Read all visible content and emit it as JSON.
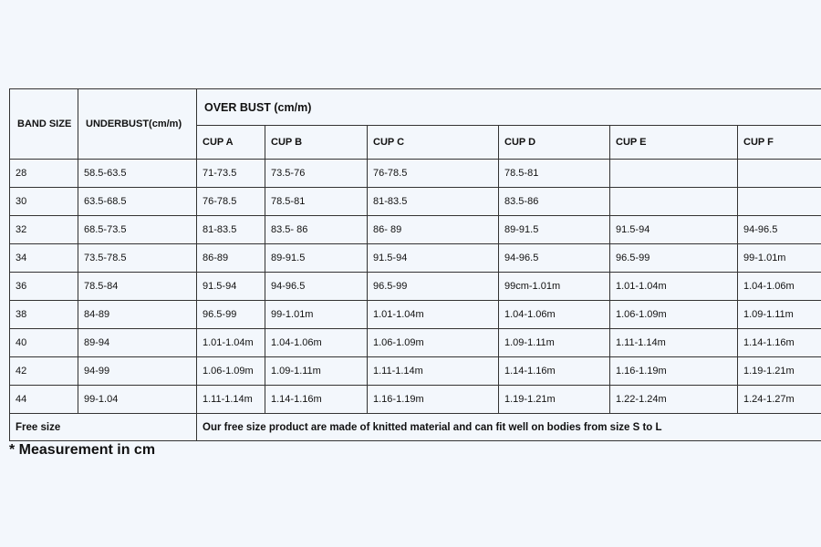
{
  "table": {
    "band_header": "BAND SIZE",
    "underbust_header": "UNDERBUST(cm/m)",
    "overbust_header": "OVER BUST (cm/m)",
    "cups": [
      "CUP A",
      "CUP B",
      "CUP C",
      "CUP D",
      "CUP E",
      "CUP F"
    ],
    "rows": [
      [
        "28",
        "58.5-63.5",
        "71-73.5",
        "73.5-76",
        "76-78.5",
        "78.5-81",
        "",
        ""
      ],
      [
        "30",
        "63.5-68.5",
        "76-78.5",
        "78.5-81",
        "81-83.5",
        "83.5-86",
        "",
        ""
      ],
      [
        "32",
        "68.5-73.5",
        "81-83.5",
        "83.5- 86",
        "86- 89",
        "89-91.5",
        "91.5-94",
        "94-96.5"
      ],
      [
        "34",
        "73.5-78.5",
        "86-89",
        "89-91.5",
        "91.5-94",
        "94-96.5",
        "96.5-99",
        "99-1.01m"
      ],
      [
        "36",
        "78.5-84",
        "91.5-94",
        "94-96.5",
        "96.5-99",
        "99cm-1.01m",
        "1.01-1.04m",
        "1.04-1.06m"
      ],
      [
        "38",
        "84-89",
        "96.5-99",
        "99-1.01m",
        "1.01-1.04m",
        "1.04-1.06m",
        "1.06-1.09m",
        "1.09-1.11m"
      ],
      [
        "40",
        "89-94",
        "1.01-1.04m",
        "1.04-1.06m",
        "1.06-1.09m",
        "1.09-1.11m",
        "1.11-1.14m",
        "1.14-1.16m"
      ],
      [
        "42",
        "94-99",
        "1.06-1.09m",
        "1.09-1.11m",
        "1.11-1.14m",
        "1.14-1.16m",
        "1.16-1.19m",
        "1.19-1.21m"
      ],
      [
        "44",
        "99-1.04",
        "1.11-1.14m",
        "1.14-1.16m",
        "1.16-1.19m",
        "1.19-1.21m",
        "1.22-1.24m",
        "1.24-1.27m"
      ]
    ],
    "free_size_label": "Free size",
    "free_size_text": "Our free size product are made of knitted material and can fit well on bodies from size S to L"
  },
  "note": "* Measurement in cm"
}
